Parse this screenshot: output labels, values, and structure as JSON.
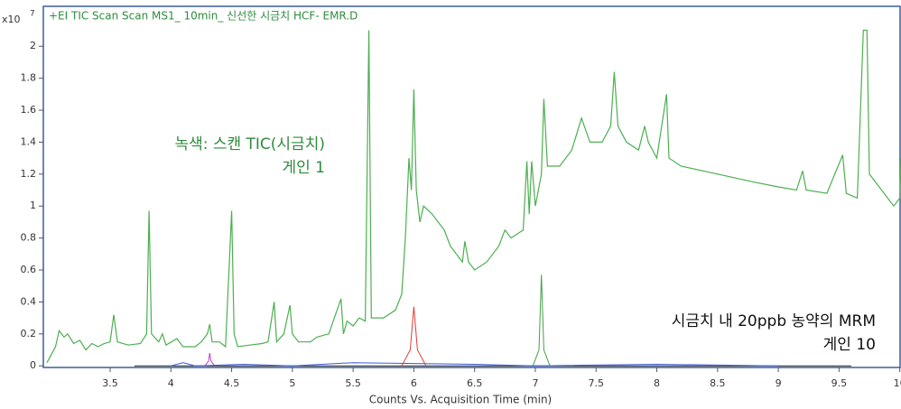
{
  "chart_data": {
    "type": "line",
    "title": "+EI TIC Scan Scan MS1_ 10min_ 신선한 시금치 HCF- EMR.D",
    "x_label": "Counts Vs. Acquisition Time (min)",
    "y_scale_prefix": "x10",
    "y_scale_exponent": "7",
    "annotations": [
      {
        "lines": [
          "녹색: 스캔 TIC(시금치)",
          "게인 1"
        ],
        "color": "#2e8b3e"
      },
      {
        "lines": [
          "시금치 내 20ppb 농약의 MRM",
          "게인 10"
        ],
        "color": "#111111"
      }
    ],
    "xlim": [
      2.95,
      10.01
    ],
    "ylim": [
      -0.01,
      2.25
    ],
    "xticks": [
      3.5,
      4,
      4.5,
      5,
      5.5,
      6,
      6.5,
      7,
      7.5,
      8,
      8.5,
      9,
      9.5,
      10
    ],
    "yticks": [
      0,
      0.2,
      0.4,
      0.6,
      0.8,
      1,
      1.2,
      1.4,
      1.6,
      1.8,
      2
    ],
    "frame_color": "#3a5fa0",
    "series": [
      {
        "color": "#4caf50",
        "x": [
          2.98,
          3.05,
          3.08,
          3.12,
          3.15,
          3.2,
          3.25,
          3.3,
          3.35,
          3.4,
          3.45,
          3.5,
          3.53,
          3.56,
          3.65,
          3.75,
          3.8,
          3.82,
          3.84,
          3.9,
          3.93,
          3.96,
          4.05,
          4.1,
          4.2,
          4.25,
          4.3,
          4.32,
          4.34,
          4.4,
          4.45,
          4.5,
          4.52,
          4.55,
          4.65,
          4.75,
          4.8,
          4.85,
          4.87,
          4.93,
          4.98,
          5.0,
          5.05,
          5.15,
          5.2,
          5.3,
          5.4,
          5.42,
          5.45,
          5.5,
          5.55,
          5.6,
          5.63,
          5.65,
          5.75,
          5.85,
          5.9,
          5.93,
          5.96,
          5.98,
          6.0,
          6.02,
          6.05,
          6.08,
          6.15,
          6.25,
          6.3,
          6.4,
          6.42,
          6.45,
          6.5,
          6.6,
          6.7,
          6.75,
          6.8,
          6.9,
          6.93,
          6.95,
          6.97,
          7.0,
          7.05,
          7.07,
          7.1,
          7.2,
          7.3,
          7.38,
          7.45,
          7.55,
          7.62,
          7.65,
          7.68,
          7.75,
          7.85,
          7.9,
          7.93,
          8.0,
          8.08,
          8.1,
          8.2,
          8.5,
          8.8,
          9.0,
          9.15,
          9.2,
          9.23,
          9.4,
          9.53,
          9.56,
          9.65,
          9.7,
          9.73,
          9.75,
          9.85,
          9.9,
          9.95,
          10.0,
          10.01
        ],
        "values": [
          0.02,
          0.12,
          0.22,
          0.18,
          0.2,
          0.14,
          0.16,
          0.1,
          0.14,
          0.12,
          0.14,
          0.15,
          0.32,
          0.15,
          0.13,
          0.14,
          0.2,
          0.97,
          0.2,
          0.15,
          0.2,
          0.13,
          0.17,
          0.12,
          0.12,
          0.15,
          0.2,
          0.26,
          0.15,
          0.15,
          0.12,
          0.97,
          0.2,
          0.12,
          0.13,
          0.14,
          0.15,
          0.4,
          0.15,
          0.2,
          0.38,
          0.2,
          0.15,
          0.15,
          0.18,
          0.2,
          0.42,
          0.2,
          0.28,
          0.25,
          0.3,
          0.28,
          2.1,
          0.3,
          0.3,
          0.35,
          0.45,
          0.8,
          1.3,
          1.1,
          1.73,
          1.1,
          0.9,
          1.0,
          0.95,
          0.85,
          0.75,
          0.65,
          0.78,
          0.65,
          0.6,
          0.65,
          0.75,
          0.85,
          0.8,
          0.85,
          1.28,
          0.95,
          1.28,
          1.0,
          1.2,
          1.67,
          1.25,
          1.25,
          1.35,
          1.55,
          1.4,
          1.4,
          1.5,
          1.84,
          1.5,
          1.4,
          1.35,
          1.5,
          1.4,
          1.3,
          1.7,
          1.3,
          1.25,
          1.2,
          1.15,
          1.12,
          1.1,
          1.22,
          1.1,
          1.08,
          1.32,
          1.08,
          1.05,
          2.1,
          2.1,
          1.2,
          1.1,
          1.05,
          1.0,
          1.05,
          1.3
        ]
      },
      {
        "color": "#222222",
        "x": [
          3.7,
          9.6
        ],
        "values": [
          0.0,
          0.0
        ]
      },
      {
        "color": "#e53935",
        "x": [
          5.9,
          5.97,
          6.0,
          6.03,
          6.1
        ],
        "values": [
          0.0,
          0.1,
          0.37,
          0.1,
          0.0
        ]
      },
      {
        "color": "#43a047",
        "x": [
          6.98,
          7.03,
          7.05,
          7.07,
          7.12
        ],
        "values": [
          0.0,
          0.1,
          0.57,
          0.1,
          0.0
        ]
      },
      {
        "color": "#c040c0",
        "x": [
          4.28,
          4.31,
          4.32,
          4.33,
          4.36
        ],
        "values": [
          0.0,
          0.03,
          0.08,
          0.03,
          0.0
        ]
      },
      {
        "color": "#3b5bdb",
        "x": [
          4.0,
          4.1,
          4.2,
          4.6,
          5.0,
          5.5,
          6.5,
          7.0,
          8.0,
          9.0
        ],
        "values": [
          0.0,
          0.02,
          0.0,
          0.01,
          0.0,
          0.02,
          0.01,
          0.0,
          0.01,
          0.0
        ]
      }
    ]
  }
}
